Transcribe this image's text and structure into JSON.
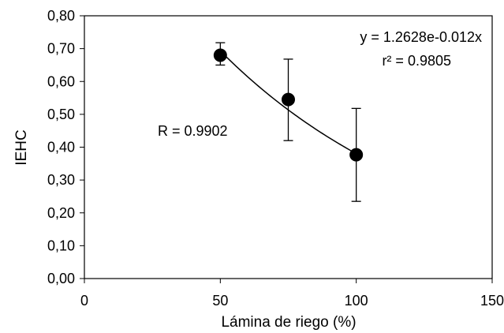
{
  "chart_data": {
    "type": "scatter",
    "xlabel": "Lámina de riego (%)",
    "ylabel": "IEHC",
    "xlim": [
      0,
      150
    ],
    "ylim": [
      0,
      0.8
    ],
    "x_ticks": [
      0,
      50,
      100,
      150
    ],
    "x_tick_labels": [
      "0",
      "50",
      "100",
      "150"
    ],
    "y_ticks": [
      0,
      0.1,
      0.2,
      0.3,
      0.4,
      0.5,
      0.6,
      0.7,
      0.8
    ],
    "y_tick_labels": [
      "0,00",
      "0,10",
      "0,20",
      "0,30",
      "0,40",
      "0,50",
      "0,60",
      "0,70",
      "0,80"
    ],
    "grid": false,
    "legend": "none",
    "series": [
      {
        "x": [
          50,
          75,
          100
        ],
        "y": [
          0.68,
          0.545,
          0.377
        ],
        "error_low": [
          0.65,
          0.42,
          0.235
        ],
        "error_high": [
          0.718,
          0.668,
          0.518
        ],
        "marker": "circle",
        "color": "#000000"
      }
    ],
    "trendline": {
      "type": "exponential",
      "a": 1.2628,
      "b": -0.012,
      "x_range": [
        50,
        100
      ],
      "color": "#000000"
    },
    "annotations": {
      "equation": "y = 1.2628e-0.012x",
      "r_squared": "r² = 0.9805",
      "r_value": "R = 0.9902"
    }
  }
}
